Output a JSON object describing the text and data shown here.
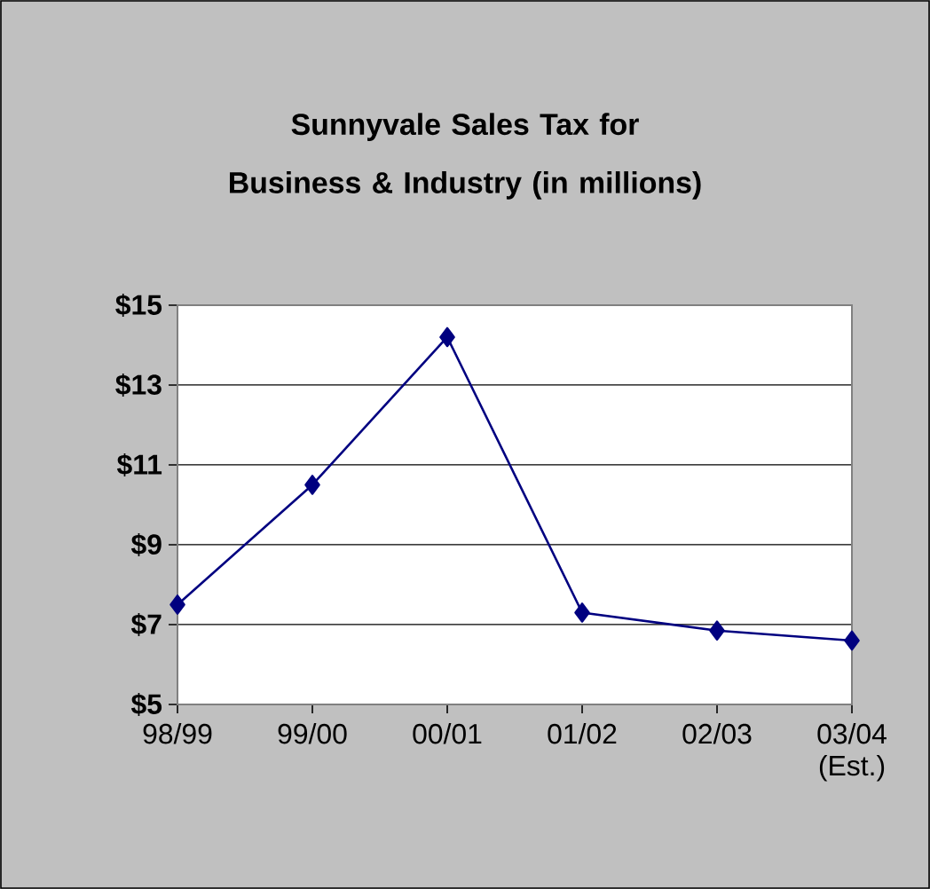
{
  "chart_data": {
    "type": "line",
    "title": "Sunnyvale Sales Tax for Business & Industry (in millions)",
    "categories": [
      "98/99",
      "99/00",
      "00/01",
      "01/02",
      "02/03",
      "03/04 (Est.)"
    ],
    "values": [
      7.5,
      10.5,
      14.2,
      7.3,
      6.85,
      6.6
    ],
    "color": "#000080",
    "marker": "diamond",
    "line_style": "solid",
    "grid": "y",
    "ylim": [
      5,
      15
    ],
    "yticks": [
      {
        "value": 5,
        "label": "$5"
      },
      {
        "value": 7,
        "label": "$7"
      },
      {
        "value": 9,
        "label": "$9"
      },
      {
        "value": 11,
        "label": "$11"
      },
      {
        "value": 13,
        "label": "$13"
      },
      {
        "value": 15,
        "label": "$15"
      }
    ]
  }
}
